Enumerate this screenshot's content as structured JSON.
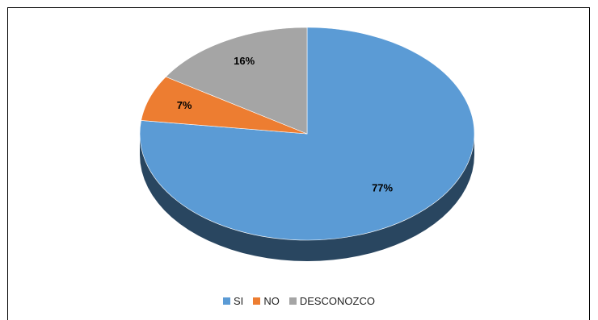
{
  "chart_data": {
    "type": "pie",
    "title": "",
    "slices": [
      {
        "label": "SI",
        "value": 77,
        "display": "77%",
        "color": "#5B9BD5"
      },
      {
        "label": "NO",
        "value": 7,
        "display": "7%",
        "color": "#ED7D31"
      },
      {
        "label": "DESCONOZCO",
        "value": 16,
        "display": "16%",
        "color": "#A5A5A5"
      }
    ],
    "legend_position": "bottom",
    "style": "3d"
  }
}
